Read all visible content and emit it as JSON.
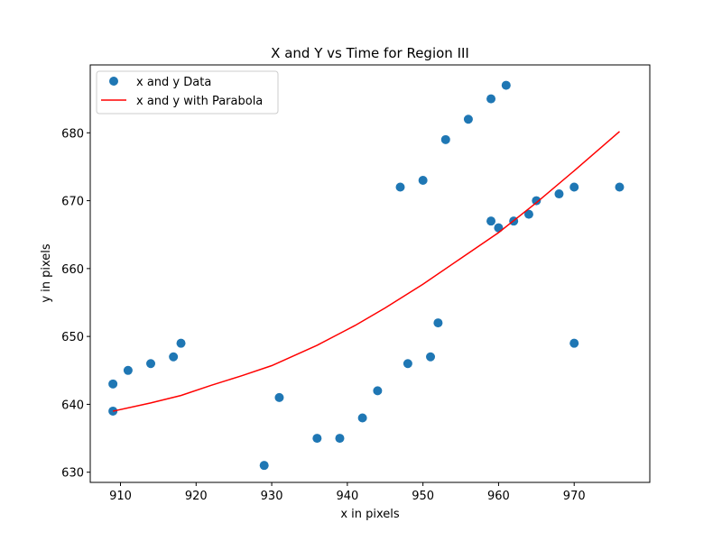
{
  "chart_data": {
    "type": "scatter",
    "title": "X and Y vs Time for Region III",
    "xlabel": "x in pixels",
    "ylabel": "y in pixels",
    "xlim": [
      906,
      980
    ],
    "ylim": [
      628.5,
      690
    ],
    "xticks": [
      910,
      920,
      930,
      940,
      950,
      960,
      970
    ],
    "yticks": [
      630,
      640,
      650,
      660,
      670,
      680
    ],
    "grid": false,
    "legend_position": "top-left",
    "series": [
      {
        "name": "x and y Data",
        "kind": "scatter",
        "color": "#1f77b4",
        "points": [
          [
            909,
            643
          ],
          [
            909,
            639
          ],
          [
            911,
            645
          ],
          [
            914,
            646
          ],
          [
            917,
            647
          ],
          [
            918,
            649
          ],
          [
            929,
            631
          ],
          [
            931,
            641
          ],
          [
            936,
            635
          ],
          [
            939,
            635
          ],
          [
            942,
            638
          ],
          [
            944,
            642
          ],
          [
            947,
            672
          ],
          [
            948,
            646
          ],
          [
            950,
            673
          ],
          [
            951,
            647
          ],
          [
            952,
            652
          ],
          [
            953,
            679
          ],
          [
            956,
            682
          ],
          [
            959,
            685
          ],
          [
            959,
            667
          ],
          [
            960,
            666
          ],
          [
            961,
            687
          ],
          [
            962,
            667
          ],
          [
            964,
            668
          ],
          [
            965,
            670
          ],
          [
            968,
            671
          ],
          [
            970,
            672
          ],
          [
            970,
            649
          ],
          [
            976,
            672
          ]
        ]
      },
      {
        "name": "x and y with Parabola",
        "kind": "line",
        "color": "#ff0000",
        "points": [
          [
            909,
            639
          ],
          [
            914,
            640.2
          ],
          [
            918,
            641.3
          ],
          [
            922,
            642.8
          ],
          [
            926,
            644.2
          ],
          [
            930,
            645.7
          ],
          [
            936,
            648.7
          ],
          [
            941,
            651.6
          ],
          [
            945,
            654.2
          ],
          [
            950,
            657.7
          ],
          [
            955,
            661.5
          ],
          [
            960,
            665.3
          ],
          [
            965,
            669.7
          ],
          [
            970,
            674.4
          ],
          [
            976,
            680.2
          ]
        ]
      }
    ]
  }
}
